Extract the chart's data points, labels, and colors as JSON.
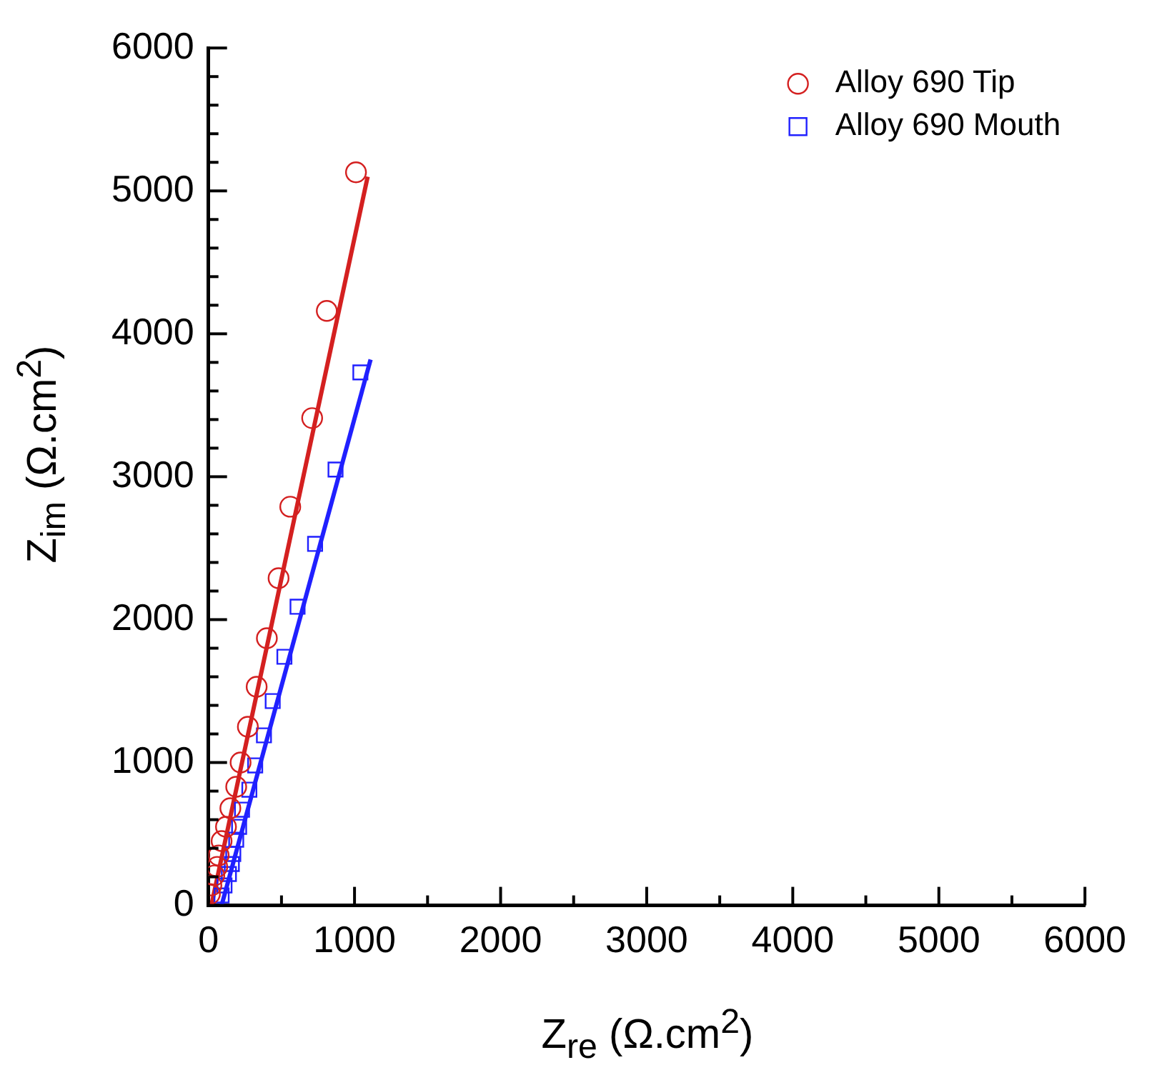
{
  "chart_data": {
    "type": "scatter",
    "xlabel": "Z$_{re}$ (Ω.cm$^{2}$)",
    "ylabel": "Z$_{im}$ (Ω.cm$^{2}$)",
    "xlim": [
      0,
      6000
    ],
    "ylim": [
      0,
      6000
    ],
    "xticks": [
      0,
      {
        "value": 500,
        "label": null
      },
      1000,
      {
        "value": 1500,
        "label": null
      },
      2000,
      {
        "value": 2500,
        "label": null
      },
      3000,
      {
        "value": 3500,
        "label": null
      },
      4000,
      {
        "value": 4500,
        "label": null
      },
      5000,
      {
        "value": 5500,
        "label": null
      },
      6000
    ],
    "yticks": [
      0,
      {
        "value": 200,
        "label": null
      },
      {
        "value": 400,
        "label": null
      },
      {
        "value": 600,
        "label": null
      },
      {
        "value": 800,
        "label": null
      },
      1000,
      {
        "value": 1200,
        "label": null
      },
      {
        "value": 1400,
        "label": null
      },
      {
        "value": 1600,
        "label": null
      },
      {
        "value": 1800,
        "label": null
      },
      2000,
      {
        "value": 2200,
        "label": null
      },
      {
        "value": 2400,
        "label": null
      },
      {
        "value": 2600,
        "label": null
      },
      {
        "value": 2800,
        "label": null
      },
      3000,
      {
        "value": 3200,
        "label": null
      },
      {
        "value": 3400,
        "label": null
      },
      {
        "value": 3600,
        "label": null
      },
      {
        "value": 3800,
        "label": null
      },
      4000,
      {
        "value": 4200,
        "label": null
      },
      {
        "value": 4400,
        "label": null
      },
      {
        "value": 4600,
        "label": null
      },
      {
        "value": 4800,
        "label": null
      },
      5000,
      {
        "value": 5200,
        "label": null
      },
      {
        "value": 5400,
        "label": null
      },
      {
        "value": 5600,
        "label": null
      },
      {
        "value": 5800,
        "label": null
      },
      6000
    ],
    "grid": false,
    "legend": "top right",
    "series": [
      {
        "name": "Alloy 690 Tip",
        "marker": "circle",
        "color": "#d42020",
        "x": [
          1010,
          810,
          710,
          560,
          480,
          400,
          330,
          270,
          220,
          190,
          150,
          120,
          90,
          70,
          60,
          40,
          20,
          10
        ],
        "values": [
          5130,
          4160,
          3410,
          2790,
          2290,
          1870,
          1530,
          1250,
          1000,
          830,
          680,
          550,
          450,
          350,
          270,
          210,
          140,
          80
        ]
      },
      {
        "name": "Alloy 690 Mouth",
        "marker": "square",
        "color": "#2020ff",
        "x": [
          1040,
          870,
          730,
          610,
          520,
          440,
          380,
          320,
          280,
          230,
          210,
          190,
          170,
          160,
          140,
          110,
          90
        ],
        "values": [
          3730,
          3050,
          2530,
          2090,
          1740,
          1430,
          1190,
          980,
          810,
          670,
          550,
          460,
          360,
          290,
          220,
          140,
          70
        ]
      },
      {
        "type": "line",
        "marker": "none",
        "color": "#d42020",
        "x": [
          20,
          1090
        ],
        "values": [
          0,
          5100
        ]
      },
      {
        "type": "line",
        "marker": "none",
        "color": "#2020ff",
        "x": [
          90,
          1110
        ],
        "values": [
          0,
          3820
        ]
      }
    ]
  }
}
